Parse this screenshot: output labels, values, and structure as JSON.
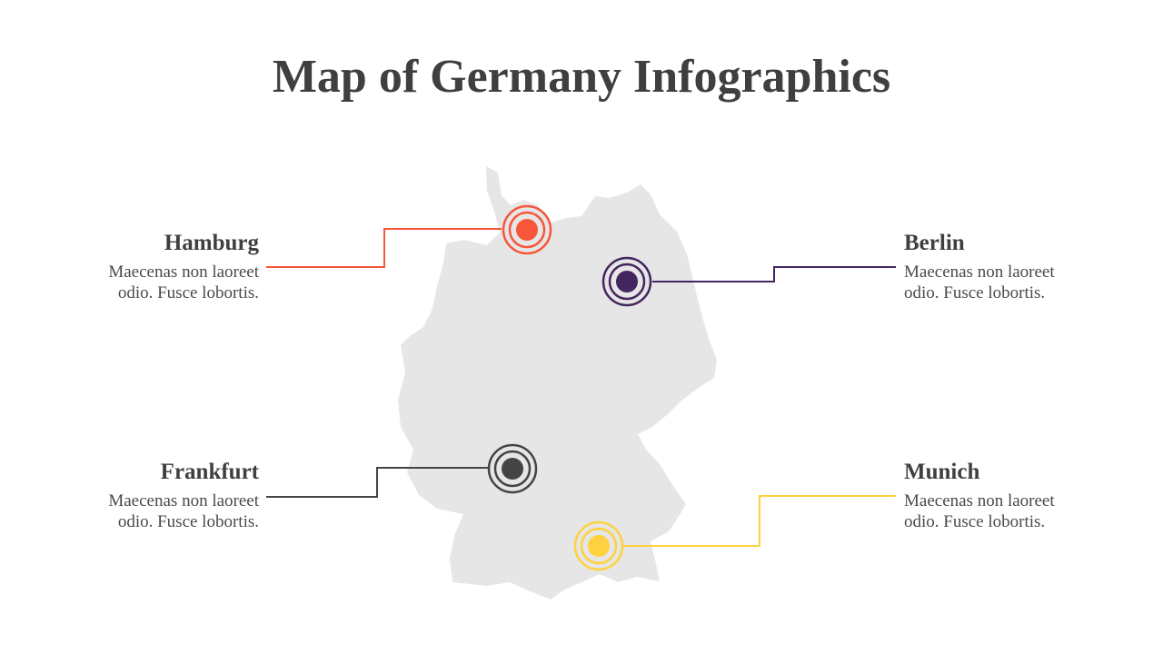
{
  "title": "Map of Germany Infographics",
  "locations": [
    {
      "name": "Hamburg",
      "text": "Maecenas non laoreet odio. Fusce lobortis.",
      "color": "#f7563b"
    },
    {
      "name": "Berlin",
      "text": "Maecenas non laoreet odio. Fusce lobortis.",
      "color": "#43265f"
    },
    {
      "name": "Frankfurt",
      "text": "Maecenas non laoreet odio. Fusce lobortis.",
      "color": "#444444"
    },
    {
      "name": "Munich",
      "text": "Maecenas non laoreet odio. Fusce lobortis.",
      "color": "#fdd23e"
    }
  ]
}
